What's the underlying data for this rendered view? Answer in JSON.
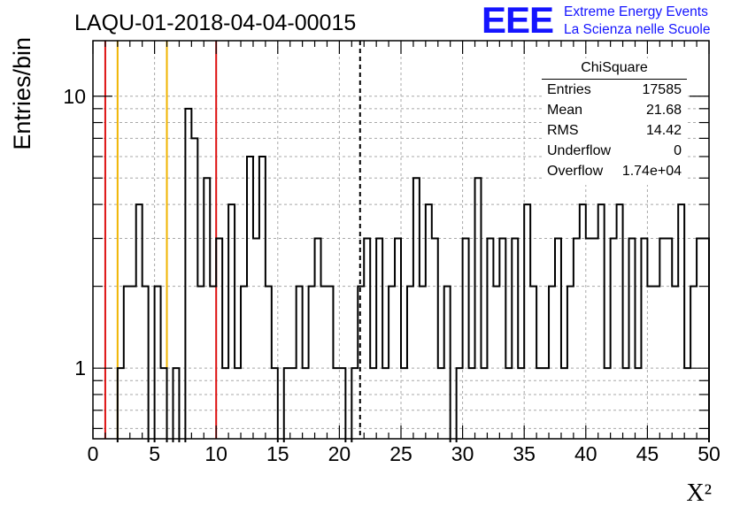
{
  "title": "LAQU-01-2018-04-04-00015",
  "logo": {
    "mark": "EEE",
    "line1": "Extreme Energy Events",
    "line2": "La Scienza nelle Scuole"
  },
  "stats": {
    "title": "ChiSquare",
    "rows": [
      {
        "key": "Entries",
        "value": "17585"
      },
      {
        "key": "Mean",
        "value": "21.68"
      },
      {
        "key": "RMS",
        "value": "14.42"
      },
      {
        "key": "Underflow",
        "value": "0"
      },
      {
        "key": "Overflow",
        "value": "1.74e+04"
      }
    ]
  },
  "chart_data": {
    "type": "histogram",
    "xlabel": "X²",
    "ylabel": "Entries/bin",
    "xlim": [
      0,
      50
    ],
    "ylim": [
      0.55,
      16
    ],
    "yscale": "log",
    "grid": true,
    "xticks": [
      0,
      5,
      10,
      15,
      20,
      25,
      30,
      35,
      40,
      45,
      50
    ],
    "yticks": [
      1,
      10
    ],
    "bin_width": 0.5,
    "bins": [
      [
        2.0,
        1
      ],
      [
        2.5,
        2
      ],
      [
        3.0,
        2
      ],
      [
        3.5,
        4
      ],
      [
        4.0,
        2
      ],
      [
        5.0,
        2
      ],
      [
        5.5,
        1
      ],
      [
        6.5,
        1
      ],
      [
        7.5,
        9
      ],
      [
        8.0,
        7
      ],
      [
        8.5,
        2
      ],
      [
        9.0,
        5
      ],
      [
        9.5,
        2
      ],
      [
        10.0,
        3
      ],
      [
        10.5,
        1
      ],
      [
        11.0,
        4
      ],
      [
        11.5,
        1
      ],
      [
        12.0,
        2
      ],
      [
        12.5,
        6
      ],
      [
        13.0,
        3
      ],
      [
        13.5,
        6
      ],
      [
        14.0,
        2
      ],
      [
        14.5,
        1
      ],
      [
        15.5,
        1
      ],
      [
        16.0,
        1
      ],
      [
        16.5,
        2
      ],
      [
        17.0,
        1
      ],
      [
        17.5,
        2
      ],
      [
        18.0,
        3
      ],
      [
        18.5,
        2
      ],
      [
        19.0,
        2
      ],
      [
        19.5,
        1
      ],
      [
        20.0,
        1
      ],
      [
        21.0,
        1
      ],
      [
        21.5,
        2
      ],
      [
        22.0,
        3
      ],
      [
        22.5,
        1
      ],
      [
        23.0,
        3
      ],
      [
        23.5,
        1
      ],
      [
        24.0,
        2
      ],
      [
        24.5,
        3
      ],
      [
        25.0,
        1
      ],
      [
        25.5,
        2
      ],
      [
        26.0,
        5
      ],
      [
        26.5,
        2
      ],
      [
        27.0,
        4
      ],
      [
        27.5,
        3
      ],
      [
        28.0,
        1
      ],
      [
        28.5,
        2
      ],
      [
        29.5,
        1
      ],
      [
        30.0,
        3
      ],
      [
        30.5,
        1
      ],
      [
        31.0,
        5
      ],
      [
        31.5,
        1
      ],
      [
        32.0,
        3
      ],
      [
        32.5,
        2
      ],
      [
        33.0,
        3
      ],
      [
        33.5,
        1
      ],
      [
        34.0,
        3
      ],
      [
        34.5,
        1
      ],
      [
        35.0,
        4
      ],
      [
        35.5,
        2
      ],
      [
        36.0,
        1
      ],
      [
        36.5,
        1
      ],
      [
        37.0,
        2
      ],
      [
        37.5,
        3
      ],
      [
        38.0,
        1
      ],
      [
        38.5,
        2
      ],
      [
        39.0,
        3
      ],
      [
        39.5,
        4
      ],
      [
        40.0,
        3
      ],
      [
        40.5,
        3
      ],
      [
        41.0,
        4
      ],
      [
        41.5,
        1
      ],
      [
        42.0,
        3
      ],
      [
        42.5,
        4
      ],
      [
        43.0,
        1
      ],
      [
        43.5,
        3
      ],
      [
        44.0,
        1
      ],
      [
        44.5,
        3
      ],
      [
        45.0,
        2
      ],
      [
        45.5,
        2
      ],
      [
        46.0,
        3
      ],
      [
        46.5,
        3
      ],
      [
        47.0,
        2
      ],
      [
        47.5,
        4
      ],
      [
        48.0,
        1
      ],
      [
        48.5,
        2
      ],
      [
        49.0,
        3
      ],
      [
        49.5,
        3
      ]
    ],
    "markers": [
      {
        "x": 1,
        "color": "#dd1111",
        "style": "solid"
      },
      {
        "x": 10,
        "color": "#dd1111",
        "style": "solid"
      },
      {
        "x": 2,
        "color": "#f0b400",
        "style": "solid"
      },
      {
        "x": 6,
        "color": "#f0b400",
        "style": "solid"
      },
      {
        "x": 21.68,
        "color": "#000000",
        "style": "dashed"
      }
    ]
  }
}
